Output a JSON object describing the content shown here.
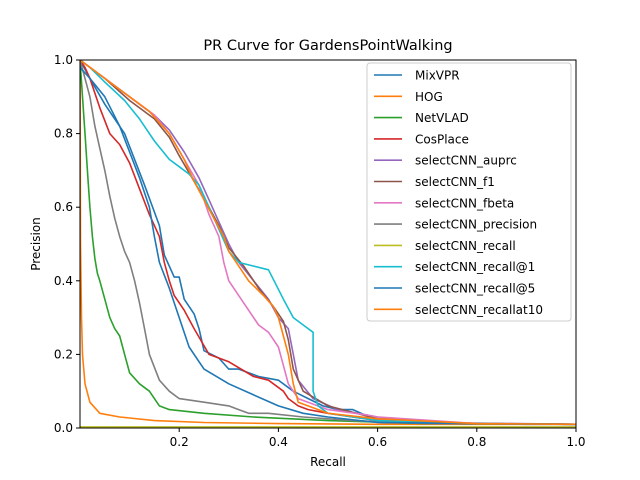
{
  "chart_data": {
    "type": "line",
    "title": "PR Curve for GardensPointWalking",
    "xlabel": "Recall",
    "ylabel": "Precision",
    "xlim": [
      0.0,
      1.0
    ],
    "ylim": [
      0.0,
      1.0
    ],
    "x_ticks": [
      {
        "value": 0.2,
        "label": "0.2"
      },
      {
        "value": 0.4,
        "label": "0.4"
      },
      {
        "value": 0.6,
        "label": "0.6"
      },
      {
        "value": 0.8,
        "label": "0.8"
      },
      {
        "value": 1.0,
        "label": "1.0"
      }
    ],
    "y_ticks": [
      {
        "value": 0.0,
        "label": "0.0"
      },
      {
        "value": 0.2,
        "label": "0.2"
      },
      {
        "value": 0.4,
        "label": "0.4"
      },
      {
        "value": 0.6,
        "label": "0.6"
      },
      {
        "value": 0.8,
        "label": "0.8"
      },
      {
        "value": 1.0,
        "label": "1.0"
      }
    ],
    "grid": false,
    "legend_position": "top-right",
    "series": [
      {
        "name": "MixVPR",
        "color": "#1f77b4",
        "x": [
          0.0,
          0.02,
          0.05,
          0.09,
          0.13,
          0.16,
          0.17,
          0.19,
          0.2,
          0.21,
          0.23,
          0.24,
          0.25,
          0.28,
          0.3,
          0.32,
          0.36,
          0.4,
          0.43,
          0.46,
          0.49,
          0.52,
          0.55,
          0.6,
          0.7,
          0.8,
          0.9,
          1.0
        ],
        "y": [
          1.0,
          0.95,
          0.88,
          0.8,
          0.66,
          0.55,
          0.47,
          0.41,
          0.41,
          0.35,
          0.31,
          0.27,
          0.21,
          0.19,
          0.16,
          0.16,
          0.14,
          0.13,
          0.1,
          0.08,
          0.06,
          0.05,
          0.05,
          0.02,
          0.015,
          0.012,
          0.01,
          0.01
        ]
      },
      {
        "name": "HOG",
        "color": "#ff7f0e",
        "x": [
          0.0,
          0.001,
          0.003,
          0.005,
          0.01,
          0.02,
          0.04,
          0.08,
          0.15,
          0.25,
          0.4,
          0.6,
          0.8,
          1.0
        ],
        "y": [
          1.0,
          0.5,
          0.3,
          0.2,
          0.12,
          0.07,
          0.04,
          0.03,
          0.02,
          0.015,
          0.012,
          0.01,
          0.01,
          0.01
        ]
      },
      {
        "name": "NetVLAD",
        "color": "#2ca02c",
        "x": [
          0.0,
          0.005,
          0.01,
          0.015,
          0.02,
          0.025,
          0.03,
          0.035,
          0.04,
          0.05,
          0.06,
          0.07,
          0.08,
          0.09,
          0.1,
          0.12,
          0.14,
          0.15,
          0.16,
          0.18,
          0.25,
          0.35,
          0.5,
          0.7,
          1.0
        ],
        "y": [
          1.0,
          0.9,
          0.8,
          0.7,
          0.6,
          0.52,
          0.46,
          0.42,
          0.4,
          0.35,
          0.3,
          0.27,
          0.25,
          0.2,
          0.15,
          0.12,
          0.1,
          0.08,
          0.06,
          0.05,
          0.04,
          0.03,
          0.02,
          0.012,
          0.01
        ]
      },
      {
        "name": "CosPlace",
        "color": "#d62728",
        "x": [
          0.0,
          0.01,
          0.02,
          0.04,
          0.06,
          0.08,
          0.1,
          0.12,
          0.14,
          0.16,
          0.17,
          0.18,
          0.19,
          0.21,
          0.23,
          0.26,
          0.3,
          0.35,
          0.38,
          0.41,
          0.42,
          0.44,
          0.46,
          0.5,
          0.6,
          0.8,
          1.0
        ],
        "y": [
          1.0,
          0.98,
          0.95,
          0.87,
          0.8,
          0.77,
          0.72,
          0.65,
          0.58,
          0.52,
          0.45,
          0.4,
          0.36,
          0.32,
          0.27,
          0.2,
          0.18,
          0.14,
          0.13,
          0.1,
          0.08,
          0.06,
          0.05,
          0.04,
          0.02,
          0.012,
          0.01
        ]
      },
      {
        "name": "selectCNN_auprc",
        "color": "#9467bd",
        "x": [
          0.0,
          0.02,
          0.05,
          0.1,
          0.15,
          0.18,
          0.21,
          0.24,
          0.26,
          0.28,
          0.3,
          0.32,
          0.35,
          0.38,
          0.4,
          0.42,
          0.43,
          0.44,
          0.47,
          0.52,
          0.6,
          0.7,
          1.0
        ],
        "y": [
          1.0,
          0.98,
          0.95,
          0.9,
          0.85,
          0.81,
          0.75,
          0.68,
          0.62,
          0.56,
          0.5,
          0.45,
          0.4,
          0.35,
          0.3,
          0.27,
          0.2,
          0.13,
          0.08,
          0.05,
          0.03,
          0.015,
          0.01
        ]
      },
      {
        "name": "selectCNN_f1",
        "color": "#8c564b",
        "x": [
          0.0,
          0.02,
          0.05,
          0.1,
          0.15,
          0.18,
          0.2,
          0.23,
          0.26,
          0.28,
          0.3,
          0.33,
          0.36,
          0.39,
          0.41,
          0.42,
          0.43,
          0.45,
          0.5,
          0.6,
          0.8,
          1.0
        ],
        "y": [
          1.0,
          0.98,
          0.95,
          0.89,
          0.84,
          0.79,
          0.74,
          0.67,
          0.6,
          0.55,
          0.49,
          0.44,
          0.38,
          0.33,
          0.29,
          0.24,
          0.16,
          0.1,
          0.06,
          0.025,
          0.012,
          0.01
        ]
      },
      {
        "name": "selectCNN_fbeta",
        "color": "#e377c2",
        "x": [
          0.0,
          0.02,
          0.05,
          0.1,
          0.15,
          0.18,
          0.21,
          0.24,
          0.26,
          0.28,
          0.29,
          0.3,
          0.33,
          0.36,
          0.38,
          0.4,
          0.41,
          0.42,
          0.44,
          0.5,
          0.58,
          0.6,
          0.8,
          1.0
        ],
        "y": [
          1.0,
          0.98,
          0.95,
          0.9,
          0.85,
          0.8,
          0.73,
          0.66,
          0.58,
          0.52,
          0.45,
          0.4,
          0.34,
          0.28,
          0.26,
          0.22,
          0.17,
          0.12,
          0.08,
          0.05,
          0.035,
          0.03,
          0.012,
          0.01
        ]
      },
      {
        "name": "selectCNN_precision",
        "color": "#7f7f7f",
        "x": [
          0.0,
          0.01,
          0.02,
          0.03,
          0.04,
          0.05,
          0.06,
          0.07,
          0.08,
          0.09,
          0.1,
          0.11,
          0.12,
          0.13,
          0.14,
          0.16,
          0.18,
          0.2,
          0.25,
          0.3,
          0.32,
          0.34,
          0.38,
          0.45,
          0.55,
          0.7,
          1.0
        ],
        "y": [
          1.0,
          0.95,
          0.9,
          0.82,
          0.76,
          0.7,
          0.63,
          0.57,
          0.52,
          0.48,
          0.45,
          0.4,
          0.34,
          0.27,
          0.2,
          0.13,
          0.1,
          0.08,
          0.07,
          0.06,
          0.05,
          0.04,
          0.04,
          0.03,
          0.02,
          0.012,
          0.01
        ]
      },
      {
        "name": "selectCNN_recall",
        "color": "#bcbd22",
        "x": [
          0.0,
          0.3,
          0.6,
          1.0
        ],
        "y": [
          0.003,
          0.003,
          0.003,
          0.003
        ]
      },
      {
        "name": "selectCNN_recall@1",
        "color": "#17becf",
        "x": [
          0.0,
          0.02,
          0.05,
          0.09,
          0.12,
          0.15,
          0.18,
          0.2,
          0.22,
          0.24,
          0.26,
          0.28,
          0.3,
          0.32,
          0.35,
          0.38,
          0.41,
          0.43,
          0.45,
          0.47,
          0.47,
          0.48,
          0.5,
          0.55,
          0.6,
          0.8,
          1.0
        ],
        "y": [
          1.0,
          0.98,
          0.94,
          0.89,
          0.84,
          0.78,
          0.73,
          0.71,
          0.69,
          0.66,
          0.6,
          0.54,
          0.48,
          0.45,
          0.44,
          0.43,
          0.35,
          0.3,
          0.28,
          0.26,
          0.1,
          0.06,
          0.04,
          0.03,
          0.02,
          0.012,
          0.01
        ]
      },
      {
        "name": "selectCNN_recall@5",
        "color": "#1f77b4",
        "x": [
          0.0,
          0.02,
          0.05,
          0.08,
          0.1,
          0.12,
          0.14,
          0.15,
          0.16,
          0.18,
          0.2,
          0.22,
          0.25,
          0.3,
          0.35,
          0.4,
          0.45,
          0.5,
          0.6,
          0.8,
          1.0
        ],
        "y": [
          0.98,
          0.95,
          0.9,
          0.82,
          0.75,
          0.68,
          0.6,
          0.52,
          0.45,
          0.38,
          0.3,
          0.22,
          0.16,
          0.12,
          0.09,
          0.06,
          0.04,
          0.03,
          0.015,
          0.012,
          0.01
        ]
      },
      {
        "name": "selectCNN_recallat10",
        "color": "#ff7f0e",
        "x": [
          0.0,
          0.01,
          0.03,
          0.06,
          0.1,
          0.14,
          0.18,
          0.21,
          0.23,
          0.25,
          0.27,
          0.29,
          0.3,
          0.32,
          0.34,
          0.37,
          0.39,
          0.4,
          0.41,
          0.42,
          0.43,
          0.44,
          0.5,
          0.6,
          0.8,
          1.0
        ],
        "y": [
          1.0,
          0.99,
          0.97,
          0.94,
          0.9,
          0.86,
          0.8,
          0.73,
          0.67,
          0.62,
          0.57,
          0.52,
          0.48,
          0.44,
          0.4,
          0.36,
          0.33,
          0.3,
          0.25,
          0.2,
          0.12,
          0.07,
          0.04,
          0.025,
          0.012,
          0.01
        ]
      }
    ]
  }
}
